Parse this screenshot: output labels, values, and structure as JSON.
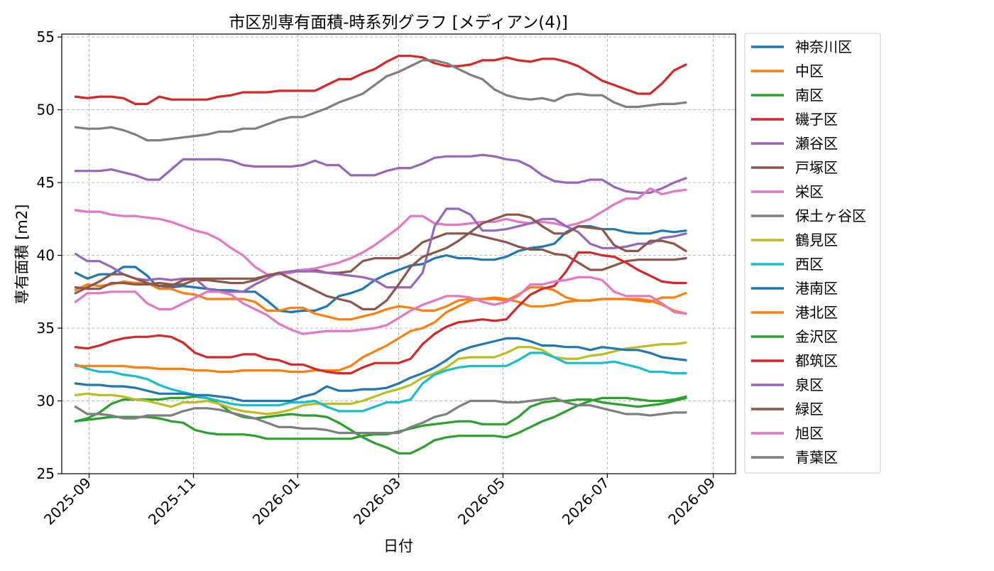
{
  "chart_data": {
    "type": "line",
    "title": "市区別専有面積-時系列グラフ [メディアン(4)]",
    "xlabel": "日付",
    "ylabel": "専有面積 [m2]",
    "x_ticks": [
      "2025-09",
      "2025-11",
      "2026-01",
      "2026-03",
      "2026-05",
      "2026-07",
      "2026-09"
    ],
    "y_ticks": [
      25,
      30,
      35,
      40,
      45,
      50,
      55
    ],
    "ylim": [
      25,
      55.2
    ],
    "xlim": [
      "2025-08-16",
      "2026-09-14"
    ],
    "grid": true,
    "legend_position": "outside-right",
    "x": [
      "2025-08-24",
      "2025-08-31",
      "2025-09-07",
      "2025-09-14",
      "2025-09-21",
      "2025-09-28",
      "2025-10-05",
      "2025-10-12",
      "2025-10-19",
      "2025-10-26",
      "2025-11-02",
      "2025-11-09",
      "2025-11-16",
      "2025-11-23",
      "2025-11-30",
      "2025-12-07",
      "2025-12-14",
      "2025-12-21",
      "2025-12-28",
      "2026-01-04",
      "2026-01-11",
      "2026-01-18",
      "2026-01-25",
      "2026-02-01",
      "2026-02-08",
      "2026-02-15",
      "2026-02-22",
      "2026-03-01",
      "2026-03-08",
      "2026-03-15",
      "2026-03-22",
      "2026-03-29",
      "2026-04-05",
      "2026-04-12",
      "2026-04-19",
      "2026-04-26",
      "2026-05-03",
      "2026-05-10",
      "2026-05-17",
      "2026-05-24",
      "2026-05-31",
      "2026-06-07",
      "2026-06-14",
      "2026-06-21",
      "2026-06-28",
      "2026-07-05",
      "2026-07-12",
      "2026-07-19",
      "2026-07-26",
      "2026-08-02",
      "2026-08-09",
      "2026-08-16"
    ],
    "series": [
      {
        "name": "神奈川区",
        "color": "#1f77b4",
        "values": [
          38.8,
          38.4,
          38.7,
          38.7,
          39.2,
          39.2,
          38.6,
          37.7,
          37.8,
          37.9,
          37.8,
          37.7,
          37.6,
          37.6,
          37.5,
          37.5,
          36.9,
          36.2,
          36.1,
          36.2,
          36.2,
          36.5,
          37.2,
          37.4,
          37.7,
          38.3,
          38.7,
          39.0,
          39.3,
          39.4,
          39.8,
          40.0,
          39.8,
          39.8,
          39.7,
          39.7,
          39.9,
          40.3,
          40.5,
          40.6,
          40.8,
          41.6,
          42.0,
          42.0,
          41.8,
          41.8,
          41.6,
          41.5,
          41.5,
          41.7,
          41.6,
          41.7
        ]
      },
      {
        "name": "中区",
        "color": "#ff7f0e",
        "values": [
          37.6,
          38.0,
          37.9,
          38.0,
          38.2,
          38.1,
          38.1,
          37.7,
          37.7,
          37.4,
          37.3,
          37.0,
          37.0,
          37.0,
          37.0,
          36.8,
          36.2,
          36.2,
          36.4,
          36.4,
          36.0,
          35.8,
          35.6,
          35.6,
          35.8,
          36.0,
          36.3,
          36.5,
          36.4,
          36.2,
          36.2,
          36.5,
          36.9,
          37.0,
          37.0,
          37.1,
          37.0,
          36.8,
          36.5,
          36.5,
          36.6,
          36.8,
          36.9,
          36.9,
          37.0,
          37.0,
          37.0,
          37.0,
          36.9,
          36.6,
          36.2,
          36.0
        ]
      },
      {
        "name": "南区",
        "color": "#2ca02c",
        "values": [
          28.6,
          28.8,
          29.2,
          29.8,
          30.1,
          30.1,
          30.1,
          30.1,
          30.2,
          30.2,
          30.3,
          30.2,
          29.8,
          29.2,
          28.9,
          28.8,
          28.9,
          29.0,
          29.1,
          29.0,
          29.0,
          28.9,
          28.5,
          28.0,
          27.5,
          27.1,
          26.8,
          26.4,
          26.4,
          26.8,
          27.3,
          27.5,
          27.6,
          27.6,
          27.6,
          27.6,
          27.5,
          27.8,
          28.2,
          28.6,
          28.9,
          29.3,
          29.7,
          30.0,
          30.2,
          30.2,
          30.2,
          30.1,
          30.0,
          30.0,
          30.1,
          30.3
        ]
      },
      {
        "name": "磯子区",
        "color": "#d62728",
        "values": [
          50.9,
          50.8,
          50.9,
          50.9,
          50.8,
          50.4,
          50.4,
          50.9,
          50.7,
          50.7,
          50.7,
          50.7,
          50.9,
          51.0,
          51.2,
          51.2,
          51.2,
          51.3,
          51.3,
          51.3,
          51.3,
          51.7,
          52.1,
          52.1,
          52.5,
          52.8,
          53.3,
          53.7,
          53.7,
          53.6,
          53.2,
          53.0,
          53.0,
          53.1,
          53.4,
          53.4,
          53.6,
          53.4,
          53.3,
          53.5,
          53.5,
          53.3,
          53.0,
          52.5,
          52.0,
          51.7,
          51.4,
          51.1,
          51.1,
          51.8,
          52.7,
          53.1
        ]
      },
      {
        "name": "瀬谷区",
        "color": "#9467bd",
        "values": [
          45.8,
          45.8,
          45.8,
          45.9,
          45.7,
          45.5,
          45.2,
          45.2,
          45.9,
          46.6,
          46.6,
          46.6,
          46.6,
          46.5,
          46.2,
          46.1,
          46.1,
          46.1,
          46.1,
          46.2,
          46.5,
          46.2,
          46.2,
          45.5,
          45.5,
          45.5,
          45.8,
          46.0,
          46.0,
          46.3,
          46.7,
          46.8,
          46.8,
          46.8,
          46.9,
          46.8,
          46.6,
          46.5,
          46.1,
          45.5,
          45.1,
          45.0,
          45.0,
          45.2,
          45.2,
          44.7,
          44.4,
          44.3,
          44.3,
          44.6,
          45.0,
          45.3
        ]
      },
      {
        "name": "戸塚区",
        "color": "#8c564b",
        "values": [
          37.8,
          37.7,
          37.7,
          38.1,
          38.1,
          38.0,
          38.0,
          38.1,
          38.0,
          38.0,
          38.3,
          38.3,
          38.2,
          38.1,
          38.1,
          38.3,
          38.6,
          38.7,
          38.9,
          39.0,
          39.0,
          38.8,
          38.8,
          38.9,
          39.6,
          39.8,
          39.8,
          39.8,
          40.2,
          40.9,
          41.2,
          41.5,
          41.5,
          41.5,
          41.3,
          41.1,
          40.9,
          40.6,
          40.4,
          40.4,
          40.1,
          40.0,
          39.5,
          39.0,
          39.0,
          39.3,
          39.6,
          39.7,
          39.7,
          39.7,
          39.7,
          39.8
        ]
      },
      {
        "name": "栄区",
        "color": "#e377c2",
        "values": [
          43.1,
          43.0,
          43.0,
          42.8,
          42.7,
          42.7,
          42.6,
          42.5,
          42.3,
          42.0,
          41.7,
          41.5,
          41.1,
          40.5,
          40.0,
          39.2,
          38.7,
          38.7,
          38.8,
          39.0,
          39.1,
          39.3,
          39.5,
          39.8,
          40.2,
          40.7,
          41.3,
          41.9,
          42.7,
          42.7,
          42.2,
          42.1,
          42.1,
          42.2,
          42.3,
          42.3,
          42.5,
          42.3,
          42.2,
          42.3,
          42.2,
          42.0,
          42.2,
          42.5,
          43.0,
          43.5,
          43.9,
          43.9,
          44.6,
          44.2,
          44.4,
          44.5
        ]
      },
      {
        "name": "保土ヶ谷区",
        "color": "#7f7f7f",
        "values": [
          48.8,
          48.7,
          48.7,
          48.8,
          48.6,
          48.3,
          47.9,
          47.9,
          48.0,
          48.1,
          48.2,
          48.3,
          48.5,
          48.5,
          48.7,
          48.7,
          49.0,
          49.3,
          49.5,
          49.5,
          49.8,
          50.1,
          50.5,
          50.8,
          51.1,
          51.7,
          52.3,
          52.6,
          53.0,
          53.4,
          53.4,
          53.2,
          52.8,
          52.4,
          52.1,
          51.4,
          51.0,
          50.8,
          50.7,
          50.8,
          50.6,
          51.0,
          51.1,
          51.0,
          51.0,
          50.5,
          50.2,
          50.2,
          50.3,
          50.4,
          50.4,
          50.5
        ]
      },
      {
        "name": "鶴見区",
        "color": "#bcbd22",
        "values": [
          30.4,
          30.5,
          30.4,
          30.4,
          30.3,
          30.1,
          30.0,
          29.8,
          29.6,
          29.9,
          29.9,
          30.0,
          29.8,
          29.5,
          29.3,
          29.2,
          29.1,
          29.2,
          29.4,
          29.7,
          29.8,
          29.8,
          29.8,
          29.8,
          30.0,
          30.3,
          30.6,
          30.8,
          31.1,
          31.6,
          31.9,
          32.3,
          32.9,
          33.0,
          33.0,
          33.0,
          33.3,
          33.7,
          33.7,
          33.5,
          33.0,
          32.9,
          32.9,
          33.1,
          33.2,
          33.4,
          33.6,
          33.7,
          33.8,
          33.9,
          33.9,
          34.0
        ]
      },
      {
        "name": "西区",
        "color": "#17becf",
        "values": [
          32.5,
          32.2,
          32.0,
          32.0,
          31.8,
          31.7,
          31.5,
          31.1,
          30.8,
          30.6,
          30.4,
          30.2,
          30.0,
          29.8,
          29.7,
          29.7,
          29.7,
          29.7,
          29.9,
          29.9,
          30.0,
          29.6,
          29.3,
          29.3,
          29.3,
          29.6,
          29.9,
          29.9,
          30.1,
          31.2,
          31.8,
          32.1,
          32.3,
          32.4,
          32.4,
          32.4,
          32.4,
          32.8,
          33.3,
          33.3,
          33.0,
          32.6,
          32.6,
          32.6,
          32.6,
          32.7,
          32.5,
          32.3,
          32.0,
          32.0,
          31.9,
          31.9
        ]
      },
      {
        "name": "港南区",
        "color": "#1f77b4",
        "values": [
          31.2,
          31.1,
          31.1,
          31.0,
          31.0,
          30.9,
          30.7,
          30.5,
          30.5,
          30.5,
          30.4,
          30.4,
          30.3,
          30.2,
          30.0,
          30.0,
          30.0,
          30.0,
          30.0,
          30.3,
          30.5,
          31.0,
          30.7,
          30.7,
          30.8,
          30.8,
          30.9,
          31.2,
          31.6,
          31.9,
          32.3,
          32.8,
          33.4,
          33.7,
          33.9,
          34.1,
          34.3,
          34.3,
          34.1,
          33.8,
          33.8,
          33.7,
          33.7,
          33.5,
          33.7,
          33.6,
          33.5,
          33.5,
          33.3,
          33.0,
          32.9,
          32.8
        ]
      },
      {
        "name": "港北区",
        "color": "#ff7f0e",
        "values": [
          32.4,
          32.4,
          32.4,
          32.4,
          32.4,
          32.3,
          32.3,
          32.2,
          32.2,
          32.2,
          32.1,
          32.1,
          32.0,
          32.0,
          32.1,
          32.1,
          32.1,
          32.1,
          32.0,
          32.0,
          32.1,
          32.1,
          32.1,
          32.4,
          33.0,
          33.4,
          33.8,
          34.3,
          34.8,
          35.0,
          35.4,
          36.1,
          36.5,
          36.9,
          37.0,
          37.0,
          36.9,
          37.3,
          37.8,
          37.8,
          37.6,
          37.1,
          36.9,
          36.9,
          37.0,
          37.0,
          37.0,
          36.9,
          36.8,
          37.1,
          37.1,
          37.4
        ]
      },
      {
        "name": "金沢区",
        "color": "#2ca02c",
        "values": [
          28.6,
          28.7,
          28.8,
          28.9,
          28.9,
          28.9,
          28.9,
          28.8,
          28.6,
          28.5,
          28.0,
          27.8,
          27.7,
          27.7,
          27.7,
          27.6,
          27.4,
          27.4,
          27.4,
          27.4,
          27.4,
          27.4,
          27.4,
          27.4,
          27.6,
          27.7,
          27.7,
          27.9,
          28.1,
          28.3,
          28.4,
          28.5,
          28.6,
          28.6,
          28.4,
          28.4,
          28.4,
          28.9,
          29.6,
          29.9,
          30.0,
          30.0,
          30.1,
          30.1,
          29.9,
          29.8,
          29.7,
          29.6,
          29.7,
          29.8,
          30.0,
          30.2
        ]
      },
      {
        "name": "都筑区",
        "color": "#d62728",
        "values": [
          33.7,
          33.6,
          33.8,
          34.1,
          34.3,
          34.4,
          34.4,
          34.5,
          34.4,
          34.0,
          33.3,
          33.0,
          33.0,
          33.0,
          33.2,
          33.2,
          32.9,
          32.8,
          32.5,
          32.5,
          32.2,
          32.0,
          31.9,
          31.9,
          32.3,
          32.6,
          32.6,
          32.6,
          32.9,
          33.9,
          34.6,
          35.1,
          35.4,
          35.5,
          35.6,
          35.5,
          35.6,
          36.5,
          37.3,
          37.7,
          37.9,
          38.9,
          40.2,
          40.2,
          40.0,
          39.9,
          39.5,
          39.0,
          38.6,
          38.2,
          38.1,
          38.1
        ]
      },
      {
        "name": "泉区",
        "color": "#9467bd",
        "values": [
          40.1,
          39.6,
          39.6,
          39.2,
          38.7,
          38.4,
          38.3,
          38.4,
          38.3,
          38.4,
          38.4,
          37.7,
          37.5,
          37.5,
          37.5,
          38.0,
          38.4,
          38.8,
          38.9,
          38.9,
          38.9,
          38.8,
          38.7,
          38.6,
          38.5,
          38.3,
          37.8,
          37.8,
          37.8,
          38.8,
          42.0,
          43.2,
          43.2,
          42.8,
          41.7,
          41.7,
          41.8,
          42.0,
          42.2,
          42.5,
          42.5,
          42.0,
          41.6,
          40.8,
          40.5,
          40.5,
          40.6,
          40.8,
          40.8,
          41.2,
          41.3,
          41.5
        ]
      },
      {
        "name": "緑区",
        "color": "#8c564b",
        "values": [
          37.4,
          37.8,
          38.2,
          38.7,
          38.7,
          38.4,
          38.1,
          37.9,
          37.9,
          38.3,
          38.4,
          38.4,
          38.4,
          38.4,
          38.4,
          38.4,
          38.6,
          38.8,
          38.4,
          38.0,
          37.6,
          37.2,
          37.0,
          36.8,
          36.3,
          36.3,
          36.9,
          38.0,
          39.2,
          39.9,
          40.2,
          40.5,
          41.0,
          41.6,
          42.2,
          42.5,
          42.8,
          42.8,
          42.6,
          42.0,
          41.5,
          41.5,
          42.0,
          41.9,
          41.8,
          40.7,
          40.3,
          40.3,
          41.0,
          41.0,
          40.8,
          40.3
        ]
      },
      {
        "name": "旭区",
        "color": "#e377c2",
        "values": [
          36.8,
          37.4,
          37.4,
          37.5,
          37.5,
          37.5,
          36.7,
          36.3,
          36.3,
          36.7,
          37.1,
          37.5,
          37.5,
          37.3,
          36.7,
          36.3,
          35.9,
          35.3,
          34.9,
          34.6,
          34.7,
          34.8,
          34.8,
          34.8,
          34.9,
          35.0,
          35.2,
          35.7,
          36.2,
          36.6,
          36.9,
          37.2,
          37.2,
          37.1,
          36.8,
          36.6,
          36.8,
          37.2,
          38.0,
          38.0,
          38.2,
          38.3,
          38.5,
          38.5,
          38.3,
          37.5,
          37.2,
          37.2,
          37.2,
          36.7,
          36.1,
          36.0
        ]
      },
      {
        "name": "青葉区",
        "color": "#7f7f7f",
        "values": [
          29.6,
          29.1,
          29.1,
          29.0,
          28.8,
          28.8,
          29.0,
          29.0,
          29.0,
          29.3,
          29.5,
          29.5,
          29.4,
          29.2,
          29.0,
          28.8,
          28.5,
          28.2,
          28.2,
          28.1,
          28.1,
          28.0,
          27.8,
          27.8,
          27.8,
          27.8,
          27.8,
          27.8,
          28.2,
          28.5,
          28.9,
          29.1,
          29.6,
          30.0,
          30.0,
          30.0,
          29.9,
          29.9,
          30.0,
          30.1,
          30.2,
          29.9,
          29.7,
          29.7,
          29.5,
          29.3,
          29.1,
          29.1,
          29.0,
          29.1,
          29.2,
          29.2
        ]
      }
    ]
  }
}
